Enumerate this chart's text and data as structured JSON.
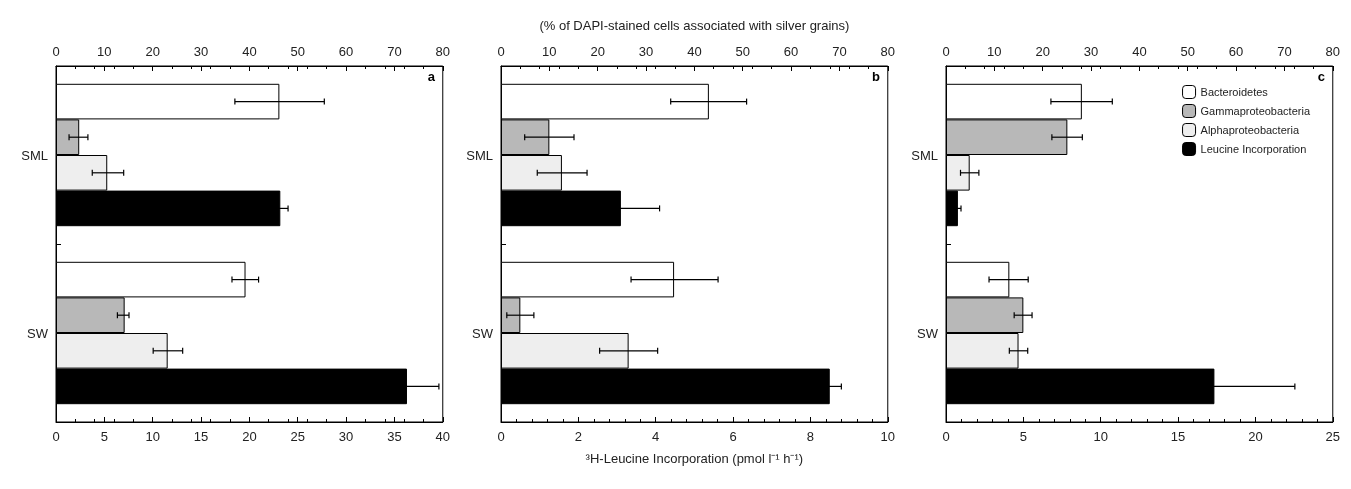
{
  "chart_data": [
    {
      "type": "bar",
      "orientation": "horizontal",
      "categories": [
        "SML",
        "SW"
      ],
      "legend": false,
      "annotations": [
        "a"
      ],
      "xlim": [
        0,
        40
      ],
      "xticks": [
        0,
        5,
        10,
        15,
        20,
        25,
        30,
        35,
        40
      ],
      "x2lim": [
        0,
        80
      ],
      "x2ticks": [
        0,
        10,
        20,
        30,
        40,
        50,
        60,
        70,
        80
      ],
      "series": [
        {
          "color": "#ffffff",
          "axis": "x2",
          "values": [
            46.2,
            39.2
          ],
          "errors": [
            [
              37,
              55.5
            ],
            [
              36.4,
              41.9
            ]
          ]
        },
        {
          "color": "#b8b8b8",
          "axis": "x2",
          "values": [
            4.8,
            14.2
          ],
          "errors": [
            [
              2.7,
              6.6
            ],
            [
              12.7,
              15.1
            ]
          ]
        },
        {
          "color": "#eeeeee",
          "axis": "x2",
          "values": [
            10.6,
            23.1
          ],
          "errors": [
            [
              7.5,
              14
            ],
            [
              20.1,
              26.2
            ]
          ]
        },
        {
          "color": "#000000",
          "values": [
            23.2,
            36.3
          ],
          "errors": [
            0.8,
            3.3
          ]
        }
      ]
    },
    {
      "type": "bar",
      "orientation": "horizontal",
      "categories": [
        "SML",
        "SW"
      ],
      "legend": false,
      "annotations": [
        "b"
      ],
      "x2label": "(% of DAPI-stained cells associated with silver grains)",
      "xlabel": "³H-Leucine Incorporation (pmol l⁻¹ h⁻¹)",
      "xlim": [
        0,
        10
      ],
      "xticks": [
        0,
        2,
        4,
        6,
        8,
        10
      ],
      "x2lim": [
        0,
        80
      ],
      "x2ticks": [
        0,
        10,
        20,
        30,
        40,
        50,
        60,
        70,
        80
      ],
      "series": [
        {
          "color": "#ffffff",
          "axis": "x2",
          "values": [
            43,
            35.8
          ],
          "errors": [
            [
              35.1,
              50.8
            ],
            [
              26.9,
              44.9
            ]
          ]
        },
        {
          "color": "#b8b8b8",
          "axis": "x2",
          "values": [
            10,
            4
          ],
          "errors": [
            [
              4.9,
              15.1
            ],
            [
              1.2,
              6.8
            ]
          ]
        },
        {
          "color": "#eeeeee",
          "axis": "x2",
          "values": [
            12.6,
            26.4
          ],
          "errors": [
            [
              7.5,
              17.8
            ],
            [
              20.4,
              32.4
            ]
          ]
        },
        {
          "color": "#000000",
          "values": [
            3.1,
            8.5
          ],
          "errors": [
            1,
            0.3
          ]
        }
      ]
    },
    {
      "type": "bar",
      "orientation": "horizontal",
      "categories": [
        "SML",
        "SW"
      ],
      "legend": "top right",
      "annotations": [
        "c"
      ],
      "xlim": [
        0,
        25
      ],
      "xticks": [
        0,
        5,
        10,
        15,
        20,
        25
      ],
      "x2lim": [
        0,
        80
      ],
      "x2ticks": [
        0,
        10,
        20,
        30,
        40,
        50,
        60,
        70,
        80
      ],
      "series": [
        {
          "name": "Bacteroidetes",
          "color": "#ffffff",
          "axis": "x2",
          "values": [
            28.1,
            13.1
          ],
          "errors": [
            [
              21.7,
              34.4
            ],
            [
              8.9,
              17
            ]
          ]
        },
        {
          "name": "Gammaproteobacteria",
          "color": "#b8b8b8",
          "axis": "x2",
          "values": [
            25.1,
            16
          ],
          "errors": [
            [
              21.9,
              28.2
            ],
            [
              14.1,
              17.8
            ]
          ]
        },
        {
          "name": "Alphaproteobacteria",
          "color": "#eeeeee",
          "axis": "x2",
          "values": [
            4.9,
            15
          ],
          "errors": [
            [
              3,
              6.8
            ],
            [
              13.1,
              16.9
            ]
          ]
        },
        {
          "name": "Leucine Incorporation",
          "color": "#000000",
          "values": [
            0.77,
            17.35
          ],
          "errors": [
            0.2,
            5.2
          ]
        }
      ]
    }
  ]
}
